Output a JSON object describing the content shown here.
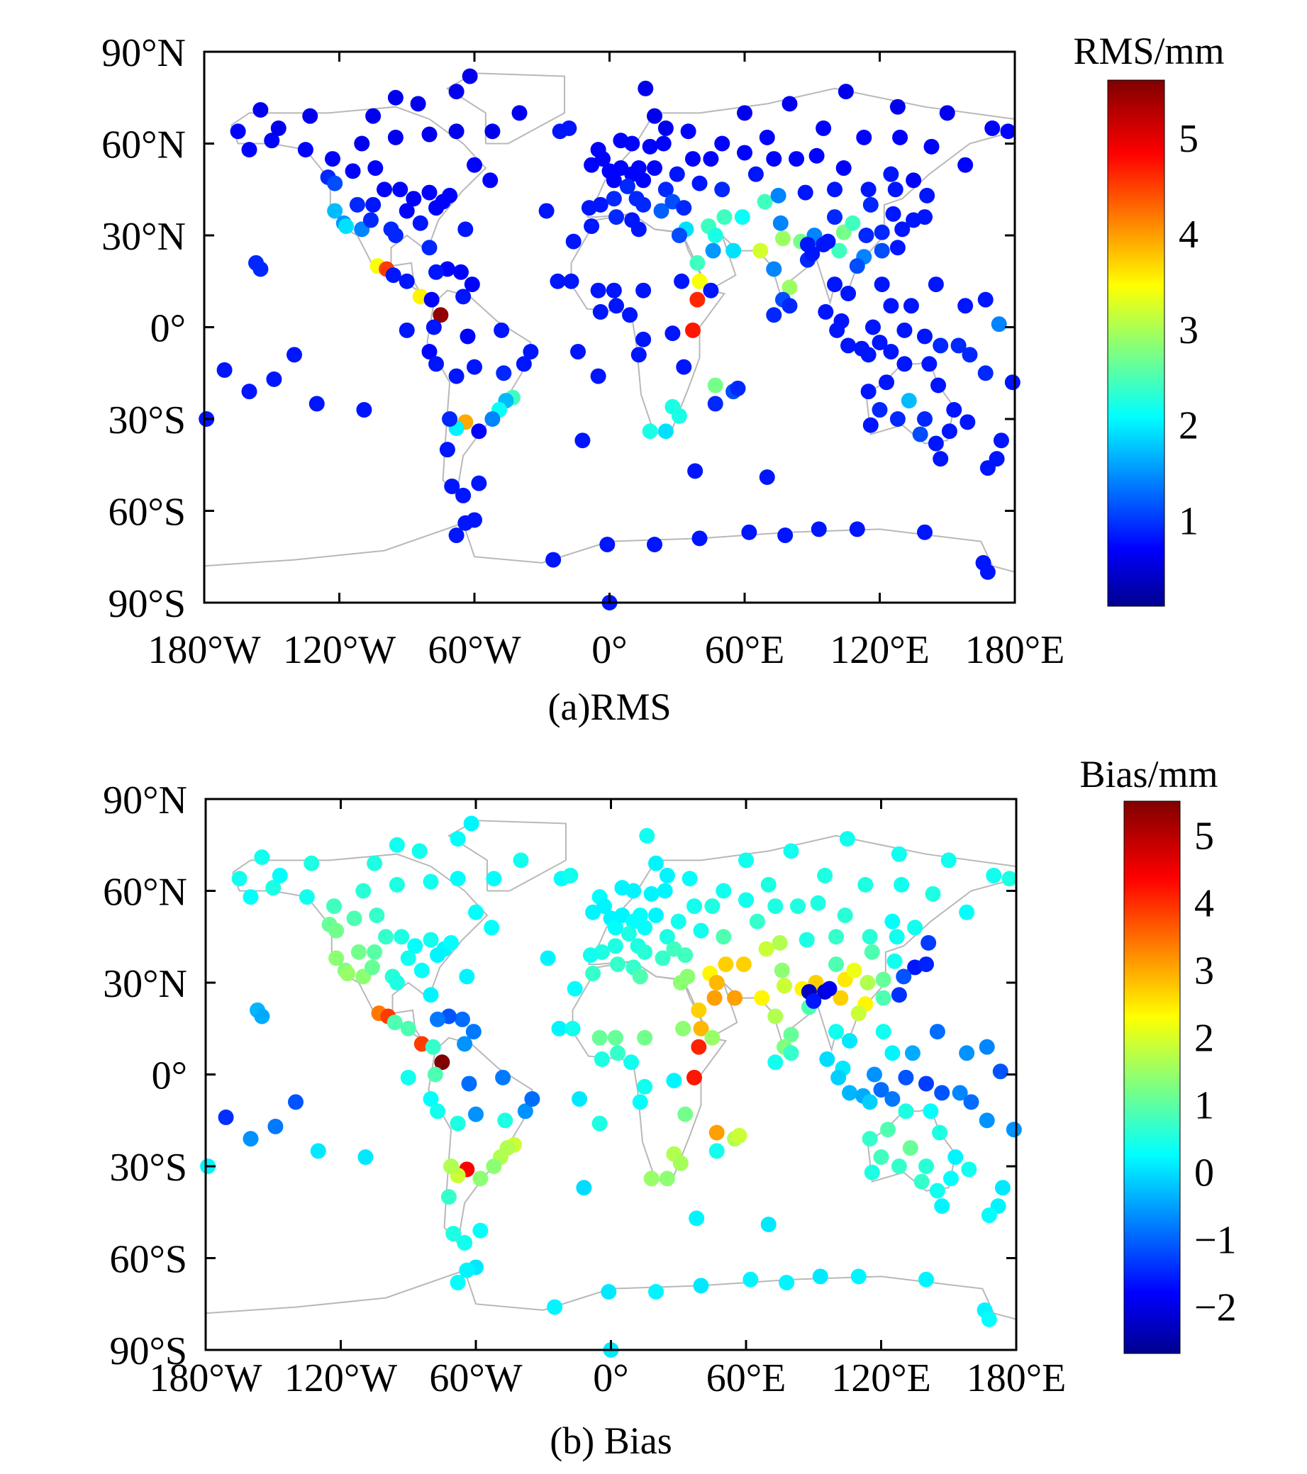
{
  "chart_data": [
    {
      "type": "scatter",
      "title": "(a)RMS",
      "colorbar_label": "RMS/mm",
      "colorbar_ticks": [
        1,
        2,
        3,
        4,
        5
      ],
      "color_range": [
        0.1,
        5.6
      ],
      "value_key": "rms",
      "colormap": "jet",
      "xlim": [
        -180,
        180
      ],
      "ylim": [
        -90,
        90
      ],
      "xticks": [
        -180,
        -120,
        -60,
        0,
        60,
        120,
        180
      ],
      "xtick_labels": [
        "180°W",
        "120°W",
        "60°W",
        "0°",
        "60°E",
        "120°E",
        "180°E"
      ],
      "yticks": [
        90,
        60,
        30,
        0,
        -30,
        -60,
        -90
      ],
      "ytick_labels": [
        "90°N",
        "60°N",
        "30°N",
        "0°",
        "30°S",
        "60°S",
        "90°S"
      ]
    },
    {
      "type": "scatter",
      "title": "(b) Bias",
      "colorbar_label": "Bias/mm",
      "colorbar_ticks": [
        -2,
        -1,
        0,
        1,
        2,
        3,
        4,
        5
      ],
      "colorbar_tick_labels": [
        "−2",
        "−1",
        "0",
        "1",
        "2",
        "3",
        "4",
        "5"
      ],
      "color_range": [
        -2.7,
        5.5
      ],
      "value_key": "bias",
      "colormap": "jet",
      "xlim": [
        -180,
        180
      ],
      "ylim": [
        -90,
        90
      ],
      "xticks": [
        -180,
        -120,
        -60,
        0,
        60,
        120,
        180
      ],
      "xtick_labels": [
        "180°W",
        "120°W",
        "60°W",
        "0°",
        "60°E",
        "120°E",
        "180°E"
      ],
      "yticks": [
        90,
        60,
        30,
        0,
        -30,
        -60,
        -90
      ],
      "ytick_labels": [
        "90°N",
        "60°N",
        "30°N",
        "0°",
        "30°S",
        "60°S",
        "90°S"
      ]
    }
  ],
  "stations_fields": [
    "lon",
    "lat",
    "rms",
    "bias"
  ],
  "stations": [
    [
      -150,
      61,
      0.8,
      0.6
    ],
    [
      -165,
      64,
      0.8,
      0.5
    ],
    [
      -147,
      65,
      0.7,
      0.4
    ],
    [
      -135,
      58,
      0.8,
      0.5
    ],
    [
      -125,
      49,
      1.0,
      1.2
    ],
    [
      -122,
      47,
      1.2,
      1.3
    ],
    [
      -122,
      38,
      1.8,
      1.5
    ],
    [
      -118,
      34,
      1.6,
      1.4
    ],
    [
      -117,
      33,
      2.0,
      1.6
    ],
    [
      -112,
      40,
      1.0,
      1.3
    ],
    [
      -105,
      40,
      0.9,
      1.1
    ],
    [
      -110,
      32,
      1.5,
      1.5
    ],
    [
      -106,
      35,
      1.0,
      1.2
    ],
    [
      -100,
      45,
      0.8,
      0.8
    ],
    [
      -97,
      32,
      1.0,
      0.7
    ],
    [
      -95,
      30,
      1.0,
      0.6
    ],
    [
      -90,
      38,
      0.8,
      0.5
    ],
    [
      -87,
      42,
      0.8,
      0.4
    ],
    [
      -84,
      34,
      0.9,
      0.4
    ],
    [
      -80,
      26,
      1.0,
      0.3
    ],
    [
      -77,
      39,
      0.8,
      0.3
    ],
    [
      -74,
      41,
      0.8,
      0.3
    ],
    [
      -71,
      43,
      0.8,
      0.4
    ],
    [
      -80,
      44,
      0.8,
      0.5
    ],
    [
      -93,
      45,
      0.8,
      0.6
    ],
    [
      -104,
      52,
      0.8,
      0.8
    ],
    [
      -114,
      51,
      0.8,
      1.0
    ],
    [
      -123,
      55,
      0.8,
      0.9
    ],
    [
      -110,
      60,
      0.7,
      0.7
    ],
    [
      -95,
      62,
      0.7,
      0.6
    ],
    [
      -80,
      63,
      0.7,
      0.5
    ],
    [
      -68,
      64,
      0.7,
      0.4
    ],
    [
      -60,
      53,
      0.8,
      0.4
    ],
    [
      -53,
      48,
      0.8,
      0.4
    ],
    [
      -85,
      73,
      0.7,
      0.5
    ],
    [
      -95,
      75,
      0.7,
      0.5
    ],
    [
      -62,
      82,
      0.7,
      0.3
    ],
    [
      -40,
      70,
      0.7,
      0.5
    ],
    [
      -52,
      64,
      0.7,
      0.4
    ],
    [
      -68,
      77,
      0.7,
      0.4
    ],
    [
      -105,
      69,
      0.7,
      0.6
    ],
    [
      -133,
      69,
      0.7,
      0.6
    ],
    [
      -155,
      71,
      0.7,
      0.5
    ],
    [
      -160,
      58,
      0.8,
      0.4
    ],
    [
      -157,
      21,
      1.0,
      -0.2
    ],
    [
      -155,
      19,
      1.0,
      -0.3
    ],
    [
      -103,
      20,
      3.5,
      3.5
    ],
    [
      -99,
      19,
      4.6,
      4.0
    ],
    [
      -96,
      17,
      0.9,
      1.0
    ],
    [
      -90,
      15,
      0.9,
      1.0
    ],
    [
      -84,
      10,
      3.6,
      4.0
    ],
    [
      -79,
      9,
      0.8,
      0.8
    ],
    [
      -75,
      4,
      5.5,
      5.5
    ],
    [
      -66,
      18,
      0.8,
      -0.8
    ],
    [
      -72,
      19,
      0.8,
      -1.0
    ],
    [
      -77,
      18,
      0.9,
      -0.7
    ],
    [
      -61,
      14,
      0.8,
      -0.7
    ],
    [
      -65,
      10,
      0.9,
      -0.5
    ],
    [
      -78,
      0,
      0.9,
      1.0
    ],
    [
      -80,
      -8,
      0.8,
      0.4
    ],
    [
      -77,
      -12,
      0.9,
      0.5
    ],
    [
      -68,
      -16,
      0.9,
      0.6
    ],
    [
      -63,
      -3,
      0.8,
      -0.8
    ],
    [
      -60,
      -13,
      0.9,
      -0.5
    ],
    [
      -47,
      -15,
      1.0,
      0.6
    ],
    [
      -43,
      -23,
      2.5,
      2.0
    ],
    [
      -46,
      -24,
      1.8,
      1.8
    ],
    [
      -49,
      -27,
      2.2,
      1.8
    ],
    [
      -52,
      -30,
      1.5,
      1.5
    ],
    [
      -38,
      -12,
      0.9,
      -0.5
    ],
    [
      -35,
      -8,
      0.9,
      -0.8
    ],
    [
      -48,
      -1,
      0.9,
      -0.7
    ],
    [
      -58,
      -34,
      0.8,
      1.5
    ],
    [
      -64,
      -31,
      4.0,
      4.5
    ],
    [
      -68,
      -33,
      2.1,
      2.0
    ],
    [
      -71,
      -30,
      1.0,
      1.8
    ],
    [
      -72,
      -40,
      0.9,
      0.8
    ],
    [
      -70,
      -52,
      0.9,
      0.6
    ],
    [
      -65,
      -55,
      0.9,
      0.5
    ],
    [
      -58,
      -51,
      0.9,
      0.4
    ],
    [
      -60,
      -63,
      0.9,
      0.2
    ],
    [
      -109,
      -27,
      0.9,
      0.2
    ],
    [
      -140,
      -9,
      0.9,
      -1.0
    ],
    [
      -149,
      -17,
      0.9,
      -0.7
    ],
    [
      -160,
      -21,
      0.9,
      -0.5
    ],
    [
      -171,
      -14,
      0.9,
      -1.3
    ],
    [
      -179,
      -30,
      0.9,
      0.3
    ],
    [
      -130,
      -25,
      0.9,
      0.2
    ],
    [
      -90,
      -1,
      0.9,
      0.5
    ],
    [
      -28,
      38,
      0.9,
      0.3
    ],
    [
      -16,
      28,
      0.9,
      0.4
    ],
    [
      -23,
      15,
      0.9,
      0.3
    ],
    [
      -14,
      -8,
      0.9,
      0.2
    ],
    [
      -5,
      -16,
      0.9,
      0.6
    ],
    [
      -12,
      -37,
      0.9,
      0.1
    ],
    [
      -64,
      32,
      0.9,
      0.3
    ],
    [
      -22,
      64,
      0.9,
      0.4
    ],
    [
      -18,
      65,
      0.9,
      0.5
    ],
    [
      -5,
      58,
      0.8,
      0.4
    ],
    [
      0,
      51,
      0.8,
      0.3
    ],
    [
      2,
      48,
      0.8,
      0.4
    ],
    [
      -4,
      40,
      0.9,
      0.6
    ],
    [
      -9,
      39,
      0.9,
      0.5
    ],
    [
      5,
      52,
      0.8,
      0.3
    ],
    [
      10,
      50,
      0.8,
      0.4
    ],
    [
      13,
      52,
      0.8,
      0.4
    ],
    [
      12,
      42,
      1.0,
      0.6
    ],
    [
      15,
      40,
      1.0,
      0.7
    ],
    [
      20,
      52,
      0.8,
      0.3
    ],
    [
      24,
      60,
      0.8,
      0.3
    ],
    [
      18,
      59,
      0.8,
      0.3
    ],
    [
      10,
      60,
      0.8,
      0.3
    ],
    [
      5,
      61,
      0.8,
      0.3
    ],
    [
      25,
      65,
      0.7,
      0.3
    ],
    [
      20,
      69,
      0.7,
      0.3
    ],
    [
      16,
      78,
      0.7,
      0.5
    ],
    [
      25,
      45,
      1.0,
      0.6
    ],
    [
      23,
      38,
      1.3,
      0.8
    ],
    [
      30,
      50,
      0.9,
      0.5
    ],
    [
      37,
      55,
      0.8,
      0.5
    ],
    [
      28,
      41,
      1.2,
      0.9
    ],
    [
      33,
      39,
      1.0,
      0.9
    ],
    [
      40,
      47,
      0.9,
      0.5
    ],
    [
      45,
      55,
      0.8,
      0.6
    ],
    [
      50,
      60,
      0.8,
      0.5
    ],
    [
      34,
      32,
      2.0,
      1.5
    ],
    [
      35,
      64,
      0.8,
      0.4
    ],
    [
      8,
      46,
      1.0,
      0.6
    ],
    [
      -3,
      55,
      0.8,
      0.3
    ],
    [
      -8,
      53,
      0.8,
      0.3
    ],
    [
      15,
      48,
      0.8,
      0.4
    ],
    [
      2,
      42,
      1.0,
      0.6
    ],
    [
      -8,
      33,
      0.9,
      0.8
    ],
    [
      3,
      36,
      1.0,
      0.8
    ],
    [
      10,
      35,
      0.9,
      0.8
    ],
    [
      13,
      32,
      0.9,
      1.0
    ],
    [
      31,
      30,
      1.2,
      1.5
    ],
    [
      -17,
      15,
      0.9,
      0.5
    ],
    [
      -5,
      12,
      0.9,
      1.2
    ],
    [
      2,
      12,
      0.9,
      1.2
    ],
    [
      3,
      7,
      0.9,
      0.8
    ],
    [
      -4,
      5,
      0.9,
      0.6
    ],
    [
      9,
      4,
      0.9,
      0.5
    ],
    [
      15,
      12,
      0.9,
      1.3
    ],
    [
      32,
      15,
      0.9,
      1.5
    ],
    [
      39,
      9,
      4.7,
      4.2
    ],
    [
      37,
      -1,
      4.8,
      4.3
    ],
    [
      40,
      15,
      3.5,
      3.0
    ],
    [
      45,
      12,
      0.9,
      1.6
    ],
    [
      28,
      -2,
      0.9,
      0.3
    ],
    [
      15,
      -4,
      0.9,
      0.5
    ],
    [
      13,
      -9,
      0.9,
      0.4
    ],
    [
      33,
      -13,
      0.9,
      1.3
    ],
    [
      28,
      -26,
      2.3,
      1.8
    ],
    [
      18,
      -34,
      2.3,
      1.6
    ],
    [
      25,
      -34,
      2.0,
      1.5
    ],
    [
      31,
      -29,
      2.3,
      1.7
    ],
    [
      47,
      -19,
      2.8,
      3.2
    ],
    [
      55,
      -21,
      1.2,
      1.8
    ],
    [
      57,
      -20,
      1.0,
      2.0
    ],
    [
      47,
      -25,
      1.0,
      0.5
    ],
    [
      38,
      -47,
      0.9,
      0.3
    ],
    [
      70,
      -49,
      0.9,
      0.2
    ],
    [
      44,
      33,
      2.5,
      2.5
    ],
    [
      47,
      30,
      2.3,
      3.0
    ],
    [
      51,
      36,
      2.5,
      2.8
    ],
    [
      59,
      36,
      2.2,
      2.8
    ],
    [
      55,
      25,
      2.0,
      3.2
    ],
    [
      46,
      25,
      1.6,
      3.2
    ],
    [
      39,
      21,
      2.5,
      2.8
    ],
    [
      67,
      25,
      3.3,
      2.5
    ],
    [
      69,
      41,
      2.5,
      2.0
    ],
    [
      77,
      29,
      3.0,
      2.0
    ],
    [
      73,
      19,
      1.5,
      1.8
    ],
    [
      80,
      13,
      3.0,
      1.2
    ],
    [
      77,
      9,
      1.2,
      1.4
    ],
    [
      88,
      22,
      1.0,
      1.0
    ],
    [
      91,
      27,
      3.3,
      3.0
    ],
    [
      85,
      28,
      2.8,
      2.5
    ],
    [
      76,
      34,
      1.5,
      1.5
    ],
    [
      80,
      7,
      1.0,
      0.8
    ],
    [
      73,
      4,
      1.0,
      0.5
    ],
    [
      87,
      44,
      0.9,
      0.6
    ],
    [
      100,
      36,
      1.0,
      1.0
    ],
    [
      104,
      31,
      2.8,
      2.6
    ],
    [
      108,
      34,
      2.5,
      2.3
    ],
    [
      114,
      30,
      1.0,
      1.8
    ],
    [
      116,
      40,
      1.0,
      1.0
    ],
    [
      121,
      31,
      1.0,
      1.2
    ],
    [
      113,
      23,
      1.5,
      2.5
    ],
    [
      110,
      20,
      1.2,
      2.0
    ],
    [
      102,
      25,
      2.5,
      2.8
    ],
    [
      91,
      30,
      1.5,
      2.8
    ],
    [
      95,
      27,
      0.9,
      -2.0
    ],
    [
      88,
      27,
      0.9,
      -2.2
    ],
    [
      97,
      28,
      0.9,
      -1.8
    ],
    [
      90,
      24,
      0.9,
      -1.5
    ],
    [
      126,
      37,
      0.9,
      0.5
    ],
    [
      127,
      45,
      0.9,
      0.5
    ],
    [
      125,
      50,
      0.9,
      0.4
    ],
    [
      135,
      35,
      0.9,
      -1.5
    ],
    [
      140,
      36,
      0.9,
      -1.4
    ],
    [
      141,
      43,
      0.9,
      -1.2
    ],
    [
      130,
      32,
      0.9,
      -1.0
    ],
    [
      128,
      26,
      0.9,
      -1.3
    ],
    [
      121,
      25,
      1.2,
      1.0
    ],
    [
      121,
      14,
      0.9,
      0.5
    ],
    [
      125,
      7,
      0.9,
      0.3
    ],
    [
      60,
      57,
      0.8,
      0.5
    ],
    [
      73,
      55,
      0.8,
      0.6
    ],
    [
      83,
      55,
      0.8,
      0.6
    ],
    [
      92,
      56,
      0.8,
      0.6
    ],
    [
      104,
      52,
      0.8,
      0.7
    ],
    [
      113,
      62,
      0.8,
      0.6
    ],
    [
      129,
      62,
      0.8,
      0.5
    ],
    [
      135,
      48,
      0.8,
      0.5
    ],
    [
      143,
      59,
      0.8,
      0.6
    ],
    [
      158,
      53,
      0.8,
      0.4
    ],
    [
      170,
      65,
      0.8,
      0.5
    ],
    [
      177,
      64,
      0.8,
      0.6
    ],
    [
      150,
      70,
      0.7,
      0.5
    ],
    [
      128,
      72,
      0.7,
      0.5
    ],
    [
      105,
      77,
      0.7,
      0.5
    ],
    [
      80,
      73,
      0.7,
      0.5
    ],
    [
      60,
      70,
      0.7,
      0.5
    ],
    [
      70,
      62,
      0.8,
      0.6
    ],
    [
      95,
      65,
      0.8,
      0.6
    ],
    [
      115,
      45,
      0.9,
      0.7
    ],
    [
      100,
      45,
      0.9,
      0.8
    ],
    [
      75,
      43,
      1.5,
      1.8
    ],
    [
      65,
      50,
      0.9,
      0.8
    ],
    [
      50,
      45,
      1.0,
      1.0
    ],
    [
      100,
      14,
      0.9,
      0.5
    ],
    [
      103,
      2,
      0.9,
      0.2
    ],
    [
      101,
      -1,
      0.9,
      0.0
    ],
    [
      106,
      -6,
      0.9,
      -0.2
    ],
    [
      112,
      -7,
      0.9,
      -0.3
    ],
    [
      115,
      -9,
      0.9,
      0.0
    ],
    [
      117,
      0,
      0.9,
      -0.5
    ],
    [
      120,
      -5,
      0.9,
      -0.8
    ],
    [
      125,
      -8,
      0.9,
      -0.7
    ],
    [
      131,
      -1,
      0.9,
      -1.0
    ],
    [
      140,
      -3,
      0.9,
      -1.2
    ],
    [
      147,
      -6,
      1.0,
      -1.0
    ],
    [
      155,
      -6,
      1.0,
      -0.6
    ],
    [
      160,
      -9,
      1.0,
      -0.8
    ],
    [
      167,
      -15,
      1.0,
      -0.5
    ],
    [
      173,
      1,
      1.5,
      -1.0
    ],
    [
      167,
      9,
      0.9,
      -0.6
    ],
    [
      158,
      7,
      0.9,
      -0.5
    ],
    [
      145,
      14,
      0.9,
      -0.8
    ],
    [
      134,
      7,
      0.9,
      -0.3
    ],
    [
      106,
      11,
      0.9,
      0.2
    ],
    [
      96,
      5,
      0.9,
      0.1
    ],
    [
      116,
      -32,
      0.9,
      0.6
    ],
    [
      115,
      -21,
      0.9,
      0.8
    ],
    [
      123,
      -18,
      0.9,
      1.0
    ],
    [
      131,
      -12,
      0.9,
      0.6
    ],
    [
      133,
      -24,
      1.8,
      1.2
    ],
    [
      138,
      -35,
      1.2,
      0.8
    ],
    [
      145,
      -38,
      0.9,
      0.5
    ],
    [
      151,
      -34,
      0.9,
      0.4
    ],
    [
      153,
      -27,
      0.9,
      0.3
    ],
    [
      146,
      -19,
      0.9,
      0.6
    ],
    [
      142,
      -12,
      0.9,
      0.4
    ],
    [
      147,
      -43,
      0.9,
      0.3
    ],
    [
      128,
      -30,
      1.0,
      0.8
    ],
    [
      120,
      -27,
      1.0,
      0.9
    ],
    [
      140,
      -30,
      1.0,
      0.7
    ],
    [
      174,
      -37,
      0.9,
      0.2
    ],
    [
      172,
      -43,
      0.9,
      0.3
    ],
    [
      168,
      -46,
      0.9,
      0.4
    ],
    [
      179,
      -18,
      0.9,
      -0.5
    ],
    [
      159,
      -31,
      0.9,
      0.5
    ],
    [
      -68,
      -68,
      0.9,
      0.4
    ],
    [
      -64,
      -64,
      0.9,
      0.3
    ],
    [
      -25,
      -76,
      0.9,
      0.3
    ],
    [
      -1,
      -71,
      0.9,
      0.2
    ],
    [
      20,
      -71,
      0.9,
      0.3
    ],
    [
      40,
      -69,
      0.9,
      0.2
    ],
    [
      62,
      -67,
      0.9,
      0.3
    ],
    [
      78,
      -68,
      0.9,
      0.3
    ],
    [
      93,
      -66,
      0.9,
      0.2
    ],
    [
      110,
      -66,
      0.9,
      0.3
    ],
    [
      140,
      -67,
      0.9,
      0.3
    ],
    [
      166,
      -77,
      0.9,
      0.3
    ],
    [
      168,
      -80,
      0.9,
      0.4
    ],
    [
      0,
      -90,
      0.9,
      0.2
    ]
  ]
}
